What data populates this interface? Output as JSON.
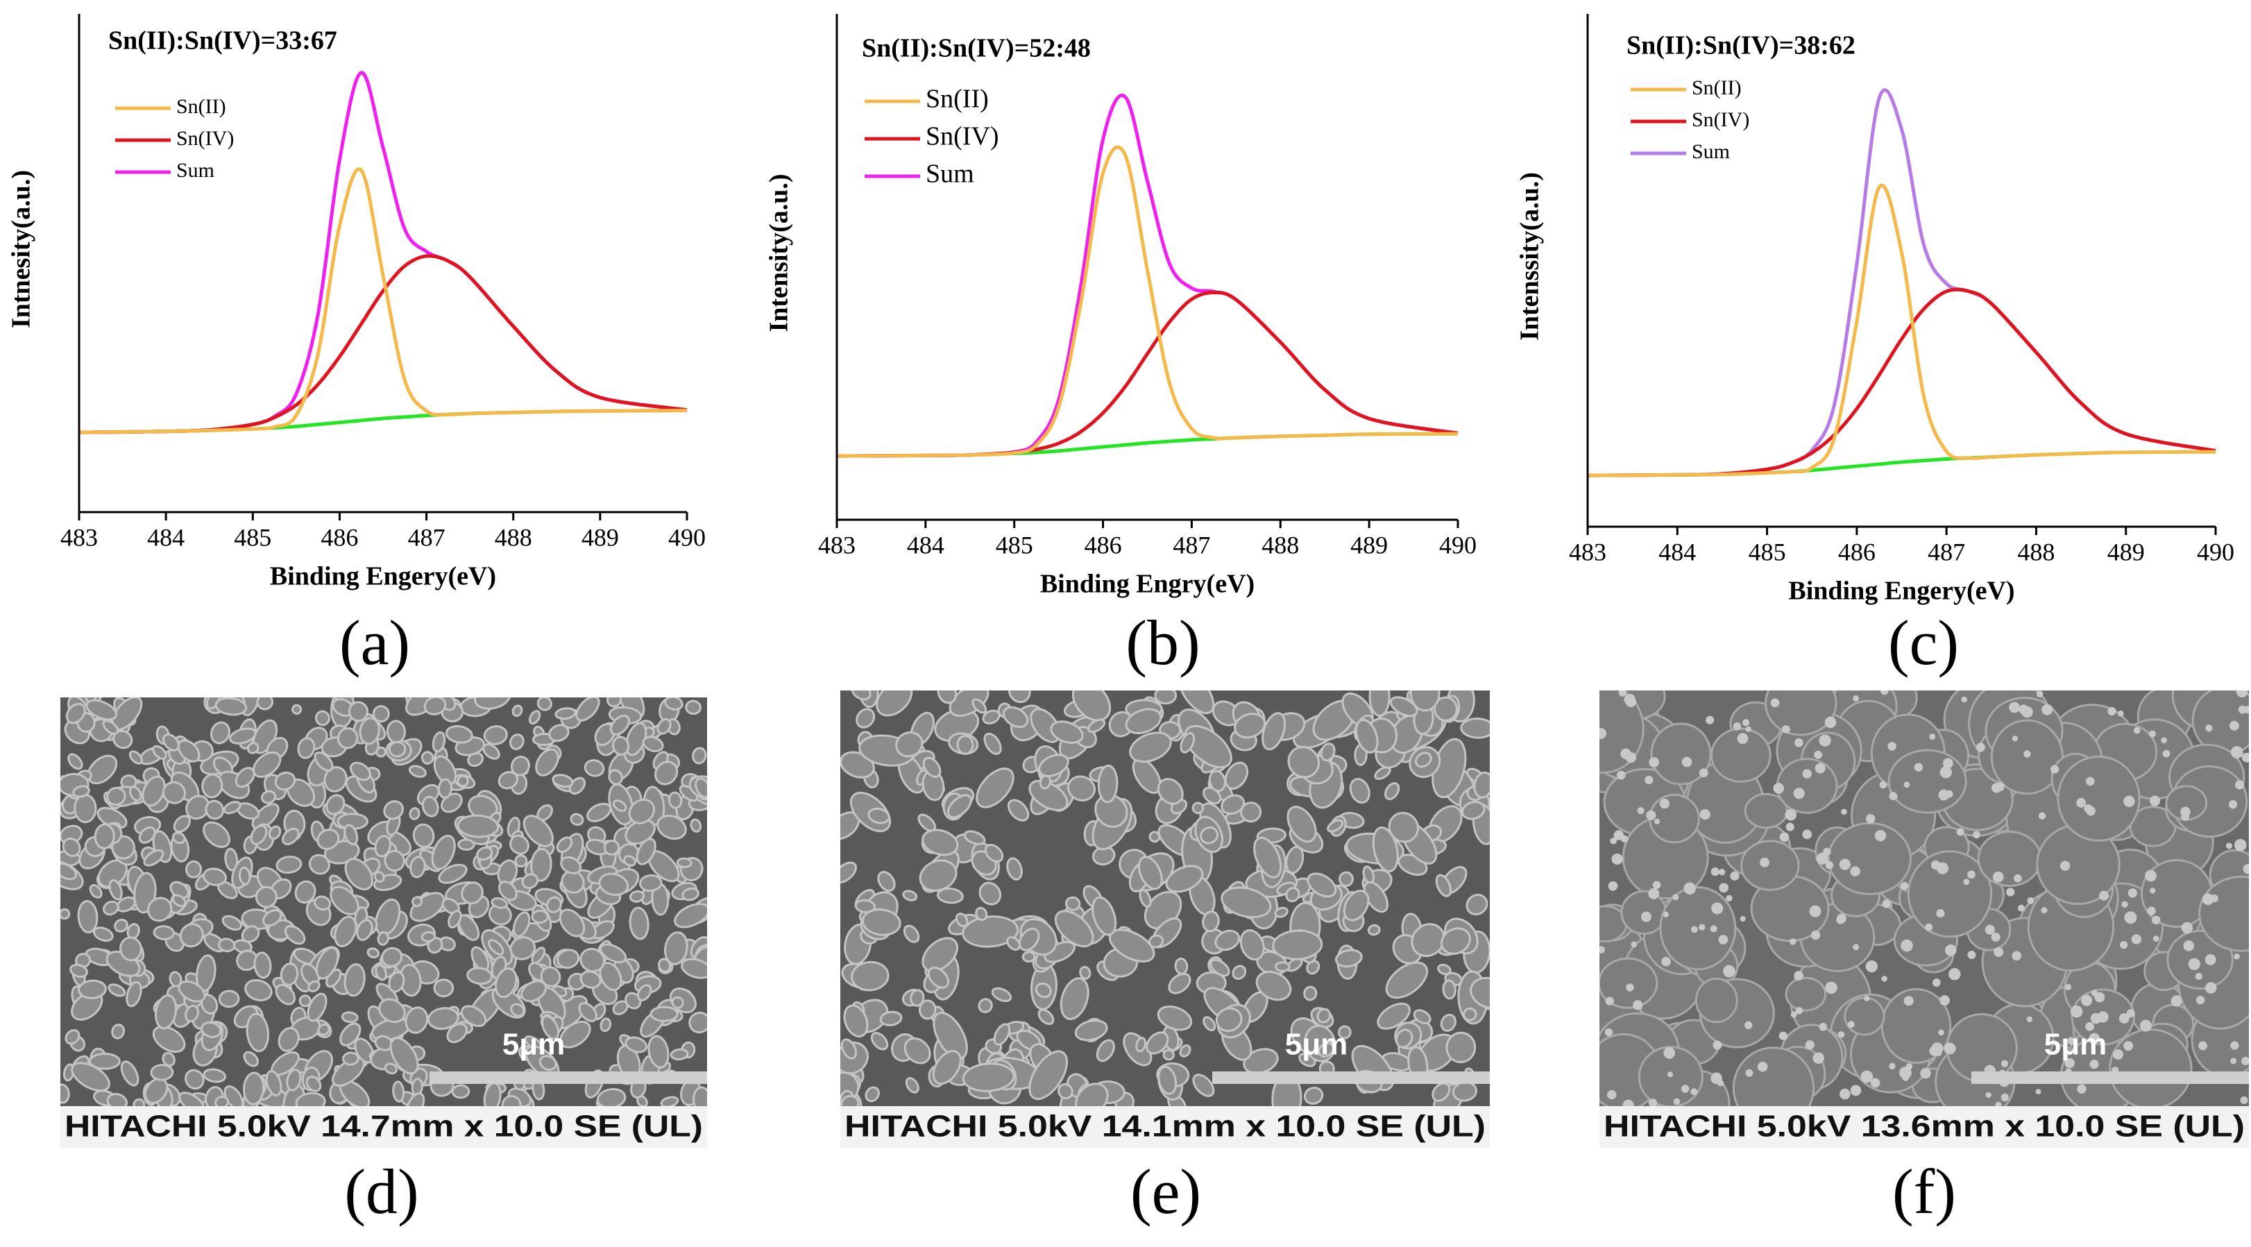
{
  "chart_data": [
    {
      "type": "line",
      "panel_label": "(a)",
      "title": "Sn(II):Sn(IV)=33:67",
      "xlabel": "Binding Engery(eV)",
      "ylabel": "Intnesity(a.u.)",
      "x": [
        483,
        484,
        484.5,
        485,
        485.25,
        485.5,
        485.75,
        486,
        486.25,
        486.5,
        486.75,
        487,
        487.25,
        487.5,
        488,
        488.5,
        489,
        490
      ],
      "xlim": [
        483,
        490
      ],
      "xticks": [
        483,
        484,
        485,
        486,
        487,
        488,
        489,
        490
      ],
      "ylim": [
        0,
        100
      ],
      "series": [
        {
          "name": "Sn(II)",
          "color": "#f5b94b",
          "values": [
            16,
            16.2,
            16.4,
            16.7,
            17.1,
            19.4,
            31.6,
            57.5,
            68.6,
            47.6,
            26.5,
            20.3,
            19.6,
            19.8,
            20,
            20.2,
            20.3,
            20.4
          ]
        },
        {
          "name": "Sn(IV)",
          "color": "#e0141e",
          "values": [
            16,
            16.2,
            16.5,
            17.6,
            19,
            21.5,
            25.6,
            31.2,
            37.8,
            44.4,
            49.4,
            51.4,
            50.4,
            47.2,
            37.3,
            28.2,
            23,
            20.5
          ]
        },
        {
          "name": "Sum",
          "color": "#f020f0",
          "values": [
            16,
            16.2,
            16.5,
            17.6,
            19.2,
            23.7,
            39.6,
            70.7,
            88.2,
            73.2,
            56.8,
            52.3,
            50.4,
            47.2,
            37.3,
            28.2,
            23,
            20.5
          ]
        },
        {
          "color": "#22e622",
          "values": [
            16,
            16.2,
            16.4,
            16.7,
            16.9,
            17.2,
            17.6,
            18,
            18.4,
            18.8,
            19.1,
            19.4,
            19.6,
            19.8,
            20,
            20.2,
            20.3,
            20.4
          ]
        }
      ]
    },
    {
      "type": "line",
      "panel_label": "(b)",
      "title": "Sn(II):Sn(IV)=52:48",
      "xlabel": "Binding Engry(eV)",
      "ylabel": "Intensity(a.u.)",
      "x": [
        483,
        484,
        484.5,
        485,
        485.25,
        485.5,
        485.75,
        486,
        486.25,
        486.5,
        486.75,
        487,
        487.25,
        487.5,
        488,
        488.5,
        489,
        490
      ],
      "xlim": [
        483,
        490
      ],
      "xticks": [
        483,
        484,
        485,
        486,
        487,
        488,
        489,
        490
      ],
      "ylim": [
        0,
        100
      ],
      "series": [
        {
          "name": "Sn(II)",
          "color": "#f5b94b",
          "values": [
            12.6,
            12.7,
            12.8,
            13.2,
            14.8,
            22.2,
            42.8,
            68.5,
            72.1,
            49.4,
            27,
            18,
            16.2,
            16.2,
            16.5,
            16.7,
            16.9,
            17
          ]
        },
        {
          "name": "Sn(IV)",
          "color": "#e0141e",
          "values": [
            12.6,
            12.7,
            12.8,
            13.3,
            13.9,
            15.1,
            17.4,
            21.1,
            26.3,
            32.8,
            39.1,
            43.6,
            44.9,
            43.5,
            35.1,
            25.7,
            20,
            17.1
          ]
        },
        {
          "name": "Sum",
          "color": "#f020f0",
          "values": [
            12.6,
            12.7,
            12.8,
            13.4,
            15.4,
            23.7,
            46.2,
            75.2,
            83.6,
            67,
            50.6,
            45.8,
            45.1,
            43.5,
            35.1,
            25.7,
            20,
            17.1
          ]
        },
        {
          "color": "#22e622",
          "values": [
            12.6,
            12.7,
            12.8,
            13.1,
            13.3,
            13.6,
            14,
            14.4,
            14.8,
            15.2,
            15.5,
            15.8,
            16,
            16.2,
            16.5,
            16.7,
            16.9,
            17
          ]
        }
      ]
    },
    {
      "type": "line",
      "panel_label": "(c)",
      "title": "Sn(II):Sn(IV)=38:62",
      "xlabel": "Binding Engery(eV)",
      "ylabel": "Intenssity(a.u.)",
      "x": [
        483,
        484,
        484.5,
        485,
        485.25,
        485.5,
        485.75,
        486,
        486.25,
        486.5,
        486.75,
        487,
        487.25,
        487.5,
        488,
        488.5,
        489,
        490
      ],
      "xlim": [
        483,
        490
      ],
      "xticks": [
        483,
        484,
        485,
        486,
        487,
        488,
        489,
        490
      ],
      "ylim": [
        0,
        100
      ],
      "series": [
        {
          "name": "Sn(II)",
          "color": "#f5b94b",
          "values": [
            10,
            10.1,
            10.2,
            10.5,
            10.7,
            11.5,
            17.3,
            40,
            66.2,
            53.5,
            25.2,
            14.7,
            13.4,
            13.6,
            14,
            14.3,
            14.5,
            14.6
          ]
        },
        {
          "name": "Sn(IV)",
          "color": "#e0141e",
          "values": [
            10,
            10.1,
            10.3,
            11.2,
            12.3,
            14.4,
            17.9,
            23,
            29.6,
            36.6,
            42.5,
            45.9,
            45.9,
            43.5,
            34,
            24.1,
            18.1,
            14.8
          ]
        },
        {
          "name": "Sum",
          "color": "#b57be6",
          "values": [
            10,
            10.1,
            10.3,
            11.2,
            12.3,
            14.9,
            23.8,
            51.2,
            83.6,
            77.5,
            54.8,
            47.4,
            45.9,
            43.5,
            34,
            24.1,
            18.1,
            14.8
          ]
        },
        {
          "color": "#22e622",
          "values": [
            10,
            10.1,
            10.2,
            10.5,
            10.7,
            11,
            11.4,
            11.8,
            12.2,
            12.6,
            12.9,
            13.2,
            13.4,
            13.6,
            14,
            14.3,
            14.5,
            14.6
          ]
        }
      ]
    }
  ],
  "images": [
    {
      "panel_label": "(d)",
      "scale_bar": "5μm",
      "caption": "HITACHI 5.0kV 14.7mm x 10.0 SE (UL)"
    },
    {
      "panel_label": "(e)",
      "scale_bar": "5μm",
      "caption": "HITACHI 5.0kV 14.1mm x 10.0 SE (UL)"
    },
    {
      "panel_label": "(f)",
      "scale_bar": "5μm",
      "caption": "HITACHI 5.0kV 13.6mm x 10.0 SE (UL)"
    }
  ]
}
